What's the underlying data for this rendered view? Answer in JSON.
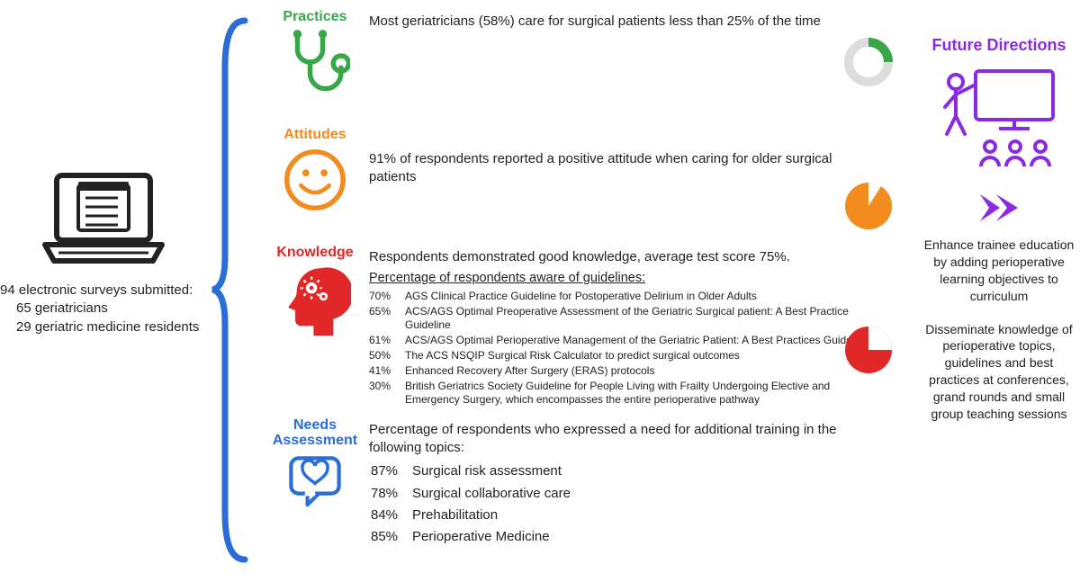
{
  "colors": {
    "green": "#3aa64a",
    "orange": "#f28c1e",
    "red": "#e02828",
    "blue": "#2a6dd6",
    "purple": "#8a2be2",
    "black": "#222222"
  },
  "survey": {
    "heading": "94 electronic surveys submitted:",
    "line1": "65 geriatricians",
    "line2": "29 geriatric medicine residents"
  },
  "practices": {
    "label": "Practices",
    "text": "Most geriatricians (58%) care for surgical patients less than 25% of the time",
    "pie_pct": 25,
    "pie_color": "#3aa64a"
  },
  "attitudes": {
    "label": "Attitudes",
    "text": "91% of respondents reported a positive attitude when caring for older surgical patients",
    "pie_pct": 91,
    "pie_color": "#f28c1e"
  },
  "knowledge": {
    "label": "Knowledge",
    "intro": "Respondents demonstrated good knowledge, average test score 75%.",
    "guidelines_title": "Percentage of respondents aware of guidelines:",
    "rows": [
      {
        "pct": "70%",
        "txt": "AGS Clinical Practice Guideline for Postoperative Delirium in Older Adults"
      },
      {
        "pct": "65%",
        "txt": "ACS/AGS Optimal Preoperative Assessment of the Geriatric Surgical patient: A Best Practice Guideline"
      },
      {
        "pct": "61%",
        "txt": "ACS/AGS Optimal Perioperative Management of the Geriatric Patient: A Best Practices Guideline"
      },
      {
        "pct": "50%",
        "txt": "The ACS NSQIP Surgical Risk Calculator to predict surgical outcomes"
      },
      {
        "pct": "41%",
        "txt": "Enhanced Recovery After Surgery (ERAS) protocols"
      },
      {
        "pct": "30%",
        "txt": "British Geriatrics Society Guideline for People Living with Frailty Undergoing Elective and Emergency Surgery, which encompasses the entire perioperative pathway"
      }
    ],
    "pie_pct": 75,
    "pie_color": "#e02828"
  },
  "needs": {
    "label1": "Needs",
    "label2": "Assessment",
    "intro": "Percentage of respondents who expressed a need for additional training in the following topics:",
    "rows": [
      {
        "pct": "87%",
        "txt": "Surgical risk assessment"
      },
      {
        "pct": "78%",
        "txt": "Surgical collaborative care"
      },
      {
        "pct": "84%",
        "txt": "Prehabilitation"
      },
      {
        "pct": "85%",
        "txt": "Perioperative Medicine"
      }
    ]
  },
  "future": {
    "title": "Future Directions",
    "p1": "Enhance trainee education by adding perioperative learning objectives to curriculum",
    "p2": "Disseminate knowledge of perioperative topics, guidelines and best practices at conferences, grand rounds and small group teaching sessions"
  }
}
